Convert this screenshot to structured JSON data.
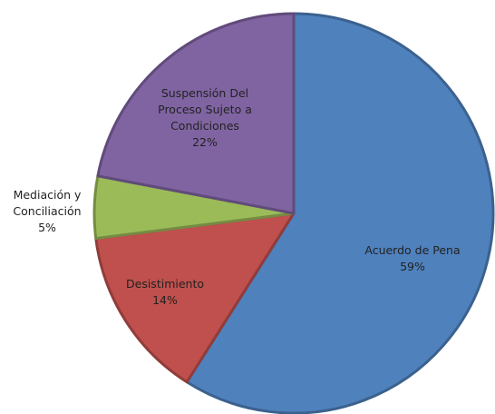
{
  "chart_data": {
    "type": "pie",
    "categories": [
      "Acuerdo de Pena",
      "Desistimiento",
      "Mediación y Conciliación",
      "Suspensión Del Proceso Sujeto a Condiciones"
    ],
    "values": [
      59,
      14,
      5,
      22
    ],
    "value_labels": [
      "59%",
      "14%",
      "5%",
      "22%"
    ],
    "colors": [
      "#4f81bd",
      "#c0504d",
      "#9bbb59",
      "#8064a2"
    ]
  }
}
